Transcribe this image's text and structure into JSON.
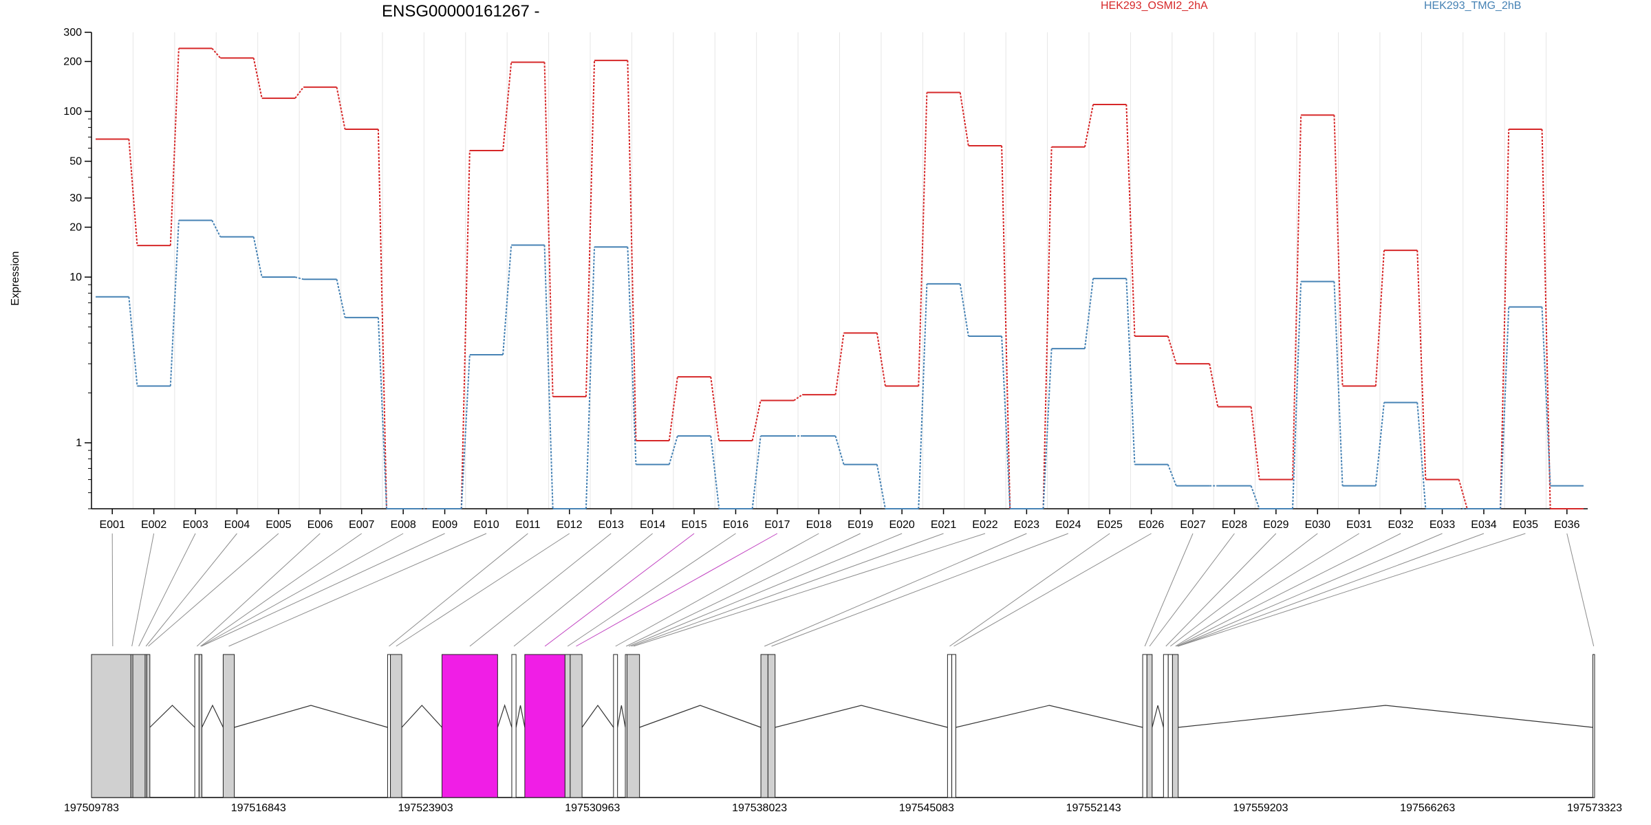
{
  "chart_data": {
    "type": "line",
    "title": "ENSG00000161267 -",
    "ylabel": "Expression",
    "xlabel": "",
    "yscale": "log",
    "ylim": [
      0.4,
      300
    ],
    "grid": true,
    "legend_placement": "top",
    "yticks": [
      1,
      10,
      20,
      30,
      50,
      100,
      200,
      300
    ],
    "categories": [
      "E001",
      "E002",
      "E003",
      "E004",
      "E005",
      "E006",
      "E007",
      "E008",
      "E009",
      "E010",
      "E011",
      "E012",
      "E013",
      "E014",
      "E015",
      "E016",
      "E017",
      "E018",
      "E019",
      "E020",
      "E021",
      "E022",
      "E023",
      "E024",
      "E025",
      "E026",
      "E027",
      "E028",
      "E029",
      "E030",
      "E031",
      "E032",
      "E033",
      "E034",
      "E035",
      "E036"
    ],
    "series": [
      {
        "name": "HEK293_OSMI2_2hA",
        "color": "#d62728",
        "values": [
          68,
          15.5,
          240,
          210,
          120,
          140,
          78,
          0.4,
          0.4,
          58,
          198,
          1.9,
          203,
          1.03,
          2.5,
          1.03,
          1.8,
          1.95,
          4.6,
          2.2,
          130,
          62,
          0.4,
          61,
          110,
          4.4,
          3,
          1.65,
          0.6,
          95,
          2.2,
          14.5,
          0.6,
          0.4,
          78,
          0.4
        ]
      },
      {
        "name": "HEK293_TMG_2hB",
        "color": "#4682b4",
        "values": [
          7.6,
          2.2,
          22,
          17.5,
          10,
          9.7,
          5.7,
          0.4,
          0.4,
          3.4,
          15.6,
          0.4,
          15.2,
          0.74,
          1.1,
          0.4,
          1.1,
          1.1,
          0.74,
          0.4,
          9.1,
          4.4,
          0.4,
          3.7,
          9.8,
          0.74,
          0.55,
          0.55,
          0.4,
          9.4,
          0.55,
          1.75,
          0.4,
          0.4,
          6.6,
          0.55
        ]
      }
    ],
    "genome_track": {
      "axis_ticks": [
        197509783,
        197516843,
        197523903,
        197530963,
        197538023,
        197545083,
        197552143,
        197559203,
        197566263,
        197573323
      ],
      "range": [
        197509783,
        197573323
      ],
      "highlight_color": "#f01ee6",
      "exon_color": "#d0d0d0",
      "exons": [
        {
          "start": 197509783,
          "end": 197511450,
          "fill": "gray"
        },
        {
          "start": 197511450,
          "end": 197511530,
          "fill": "gray"
        },
        {
          "start": 197511530,
          "end": 197512050,
          "fill": "gray"
        },
        {
          "start": 197512050,
          "end": 197512120,
          "fill": "gray"
        },
        {
          "start": 197512120,
          "end": 197512250,
          "fill": "gray"
        },
        {
          "start": 197514150,
          "end": 197514330,
          "fill": "white"
        },
        {
          "start": 197514330,
          "end": 197514450,
          "fill": "gray"
        },
        {
          "start": 197515350,
          "end": 197515820,
          "fill": "gray"
        },
        {
          "start": 197522300,
          "end": 197522420,
          "fill": "white"
        },
        {
          "start": 197522420,
          "end": 197522900,
          "fill": "gray"
        },
        {
          "start": 197524600,
          "end": 197526950,
          "fill": "magenta"
        },
        {
          "start": 197527550,
          "end": 197527730,
          "fill": "white"
        },
        {
          "start": 197528100,
          "end": 197529800,
          "fill": "magenta"
        },
        {
          "start": 197529800,
          "end": 197530020,
          "fill": "gray"
        },
        {
          "start": 197530020,
          "end": 197530520,
          "fill": "gray"
        },
        {
          "start": 197531850,
          "end": 197532020,
          "fill": "white"
        },
        {
          "start": 197532350,
          "end": 197532420,
          "fill": "white"
        },
        {
          "start": 197532420,
          "end": 197532950,
          "fill": "gray"
        },
        {
          "start": 197538080,
          "end": 197538380,
          "fill": "gray"
        },
        {
          "start": 197538380,
          "end": 197538680,
          "fill": "gray"
        },
        {
          "start": 197545970,
          "end": 197546150,
          "fill": "white"
        },
        {
          "start": 197546150,
          "end": 197546320,
          "fill": "white"
        },
        {
          "start": 197554220,
          "end": 197554400,
          "fill": "white"
        },
        {
          "start": 197554400,
          "end": 197554620,
          "fill": "gray"
        },
        {
          "start": 197555100,
          "end": 197555300,
          "fill": "white"
        },
        {
          "start": 197555300,
          "end": 197555480,
          "fill": "white"
        },
        {
          "start": 197555480,
          "end": 197555720,
          "fill": "gray"
        },
        {
          "start": 197573250,
          "end": 197573323,
          "fill": "white"
        }
      ],
      "connector_targets": [
        197510680,
        197511490,
        197511780,
        197512085,
        197512185,
        197514240,
        197514390,
        197514410,
        197514430,
        197515585,
        197522360,
        197522660,
        197525775,
        197527640,
        197528950,
        197529910,
        197530270,
        197531935,
        197532385,
        197532500,
        197532600,
        197532700,
        197538230,
        197538530,
        197546060,
        197546235,
        197554310,
        197554510,
        197555200,
        197555390,
        197555600,
        197555650,
        197555700,
        197555710,
        197555720,
        197573286
      ],
      "connector_highlight": [
        false,
        false,
        false,
        false,
        false,
        false,
        false,
        false,
        false,
        false,
        false,
        false,
        false,
        false,
        true,
        false,
        true,
        false,
        false,
        false,
        false,
        false,
        false,
        false,
        false,
        false,
        false,
        false,
        false,
        false,
        false,
        false,
        false,
        false,
        false,
        false
      ],
      "introns": [
        [
          197512250,
          197514150
        ],
        [
          197514450,
          197515350
        ],
        [
          197515820,
          197522300
        ],
        [
          197522900,
          197524600
        ],
        [
          197526950,
          197527550
        ],
        [
          197527730,
          197528100
        ],
        [
          197530520,
          197531850
        ],
        [
          197532020,
          197532350
        ],
        [
          197532950,
          197538080
        ],
        [
          197538680,
          197545970
        ],
        [
          197546320,
          197554220
        ],
        [
          197554620,
          197555100
        ],
        [
          197555720,
          197573250
        ]
      ]
    }
  }
}
